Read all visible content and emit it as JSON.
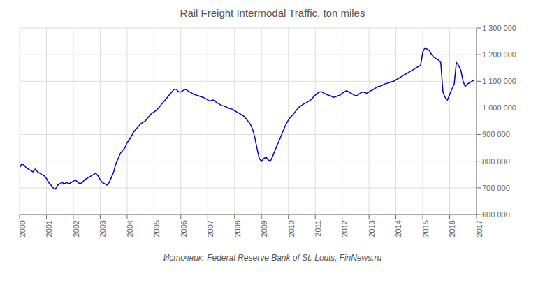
{
  "chart_data": {
    "type": "line",
    "title": "Rail Freight Intermodal Traffic, ton miles",
    "annotations": [
      "Источник: Federal Reserve Bank of St. Louis, FinNews.ru"
    ],
    "color": "#0000CC",
    "grid": true,
    "xlim": [
      2000.0,
      2017.0
    ],
    "xticks": [
      2000,
      2001,
      2002,
      2003,
      2004,
      2005,
      2006,
      2007,
      2008,
      2009,
      2010,
      2011,
      2012,
      2013,
      2014,
      2015,
      2016,
      2017
    ],
    "ylim": [
      600000,
      1300000
    ],
    "yticks": [
      {
        "value": 600000,
        "label": "600 000"
      },
      {
        "value": 700000,
        "label": "700 000"
      },
      {
        "value": 800000,
        "label": "800 000"
      },
      {
        "value": 900000,
        "label": "900 000"
      },
      {
        "value": 1000000,
        "label": "1 000 000"
      },
      {
        "value": 1100000,
        "label": "1 100 000"
      },
      {
        "value": 1200000,
        "label": "1 200 000"
      },
      {
        "value": 1300000,
        "label": "1 300 000"
      }
    ],
    "x": [
      2000.0,
      2000.08,
      2000.17,
      2000.25,
      2000.33,
      2000.42,
      2000.5,
      2000.58,
      2000.67,
      2000.75,
      2000.83,
      2000.92,
      2001.0,
      2001.08,
      2001.17,
      2001.25,
      2001.33,
      2001.42,
      2001.5,
      2001.58,
      2001.67,
      2001.75,
      2001.83,
      2001.92,
      2002.0,
      2002.08,
      2002.17,
      2002.25,
      2002.33,
      2002.42,
      2002.5,
      2002.58,
      2002.67,
      2002.75,
      2002.83,
      2002.92,
      2003.0,
      2003.08,
      2003.17,
      2003.25,
      2003.33,
      2003.42,
      2003.5,
      2003.58,
      2003.67,
      2003.75,
      2003.83,
      2003.92,
      2004.0,
      2004.08,
      2004.17,
      2004.25,
      2004.33,
      2004.42,
      2004.5,
      2004.58,
      2004.67,
      2004.75,
      2004.83,
      2004.92,
      2005.0,
      2005.08,
      2005.17,
      2005.25,
      2005.33,
      2005.42,
      2005.5,
      2005.58,
      2005.67,
      2005.75,
      2005.83,
      2005.92,
      2006.0,
      2006.08,
      2006.17,
      2006.25,
      2006.33,
      2006.42,
      2006.5,
      2006.58,
      2006.67,
      2006.75,
      2006.83,
      2006.92,
      2007.0,
      2007.08,
      2007.17,
      2007.25,
      2007.33,
      2007.42,
      2007.5,
      2007.58,
      2007.67,
      2007.75,
      2007.83,
      2007.92,
      2008.0,
      2008.08,
      2008.17,
      2008.25,
      2008.33,
      2008.42,
      2008.5,
      2008.58,
      2008.67,
      2008.75,
      2008.83,
      2008.92,
      2009.0,
      2009.08,
      2009.17,
      2009.25,
      2009.33,
      2009.42,
      2009.5,
      2009.58,
      2009.67,
      2009.75,
      2009.83,
      2009.92,
      2010.0,
      2010.08,
      2010.17,
      2010.25,
      2010.33,
      2010.42,
      2010.5,
      2010.58,
      2010.67,
      2010.75,
      2010.83,
      2010.92,
      2011.0,
      2011.08,
      2011.17,
      2011.25,
      2011.33,
      2011.42,
      2011.5,
      2011.58,
      2011.67,
      2011.75,
      2011.83,
      2011.92,
      2012.0,
      2012.08,
      2012.17,
      2012.25,
      2012.33,
      2012.42,
      2012.5,
      2012.58,
      2012.67,
      2012.75,
      2012.83,
      2012.92,
      2013.0,
      2013.08,
      2013.17,
      2013.25,
      2013.33,
      2013.42,
      2013.5,
      2013.58,
      2013.67,
      2013.75,
      2013.83,
      2013.92,
      2014.0,
      2014.08,
      2014.17,
      2014.25,
      2014.33,
      2014.42,
      2014.5,
      2014.58,
      2014.67,
      2014.75,
      2014.83,
      2014.92,
      2015.0,
      2015.08,
      2015.17,
      2015.25,
      2015.33,
      2015.42,
      2015.5,
      2015.58,
      2015.67,
      2015.75,
      2015.83,
      2015.92,
      2016.0,
      2016.08,
      2016.17,
      2016.25,
      2016.33,
      2016.42,
      2016.5,
      2016.58,
      2016.67,
      2016.75,
      2016.83,
      2016.92
    ],
    "values": [
      775000,
      790000,
      785000,
      775000,
      770000,
      765000,
      760000,
      770000,
      760000,
      755000,
      750000,
      745000,
      735000,
      720000,
      710000,
      700000,
      695000,
      710000,
      715000,
      720000,
      715000,
      720000,
      715000,
      720000,
      725000,
      730000,
      720000,
      715000,
      720000,
      730000,
      735000,
      740000,
      745000,
      750000,
      755000,
      745000,
      730000,
      720000,
      715000,
      710000,
      720000,
      740000,
      760000,
      790000,
      810000,
      830000,
      840000,
      850000,
      870000,
      880000,
      895000,
      910000,
      920000,
      930000,
      940000,
      945000,
      950000,
      960000,
      970000,
      980000,
      985000,
      990000,
      1000000,
      1010000,
      1020000,
      1030000,
      1040000,
      1050000,
      1060000,
      1070000,
      1070000,
      1060000,
      1060000,
      1065000,
      1070000,
      1065000,
      1060000,
      1055000,
      1050000,
      1048000,
      1045000,
      1042000,
      1040000,
      1035000,
      1030000,
      1025000,
      1030000,
      1028000,
      1020000,
      1015000,
      1010000,
      1008000,
      1005000,
      1000000,
      998000,
      995000,
      990000,
      985000,
      980000,
      975000,
      970000,
      960000,
      950000,
      940000,
      920000,
      890000,
      850000,
      810000,
      800000,
      810000,
      815000,
      805000,
      800000,
      820000,
      840000,
      860000,
      880000,
      900000,
      920000,
      940000,
      955000,
      965000,
      975000,
      985000,
      995000,
      1005000,
      1010000,
      1015000,
      1020000,
      1025000,
      1030000,
      1040000,
      1048000,
      1055000,
      1060000,
      1060000,
      1055000,
      1050000,
      1048000,
      1045000,
      1040000,
      1042000,
      1045000,
      1048000,
      1055000,
      1060000,
      1065000,
      1060000,
      1055000,
      1050000,
      1045000,
      1048000,
      1055000,
      1060000,
      1058000,
      1055000,
      1060000,
      1065000,
      1070000,
      1075000,
      1080000,
      1082000,
      1085000,
      1090000,
      1092000,
      1095000,
      1098000,
      1100000,
      1105000,
      1110000,
      1115000,
      1120000,
      1125000,
      1130000,
      1135000,
      1140000,
      1145000,
      1150000,
      1155000,
      1160000,
      1210000,
      1225000,
      1220000,
      1215000,
      1200000,
      1190000,
      1185000,
      1180000,
      1170000,
      1060000,
      1040000,
      1030000,
      1050000,
      1070000,
      1090000,
      1170000,
      1160000,
      1140000,
      1100000,
      1080000,
      1090000,
      1095000,
      1100000,
      1105000
    ]
  }
}
